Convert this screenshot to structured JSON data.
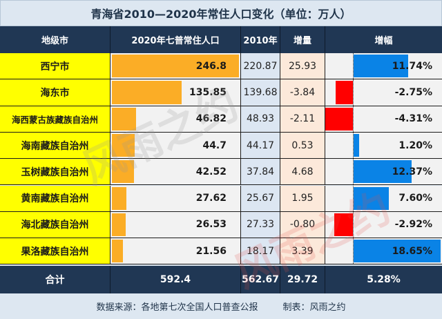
{
  "title": "青海省2010—2020年常住人口变化（单位：万人）",
  "header": {
    "city": "地级市",
    "pop2020": "2020年七普常住人口",
    "pop2010": "2010年",
    "increase": "增量",
    "growth": "增幅"
  },
  "rows": [
    {
      "city": "西宁市",
      "pop2020": "246.8",
      "pop2010": "220.87",
      "increase": "25.93",
      "growth": "11.74%"
    },
    {
      "city": "海东市",
      "pop2020": "135.85",
      "pop2010": "139.68",
      "increase": "-3.84",
      "growth": "-2.75%"
    },
    {
      "city": "海西蒙古族藏族自治州",
      "pop2020": "46.82",
      "pop2010": "48.93",
      "increase": "-2.11",
      "growth": "-4.31%"
    },
    {
      "city": "海南藏族自治州",
      "pop2020": "44.7",
      "pop2010": "44.17",
      "increase": "0.53",
      "growth": "1.20%"
    },
    {
      "city": "玉树藏族自治州",
      "pop2020": "42.52",
      "pop2010": "37.84",
      "increase": "4.68",
      "growth": "12.37%"
    },
    {
      "city": "黄南藏族自治州",
      "pop2020": "27.62",
      "pop2010": "25.67",
      "increase": "1.95",
      "growth": "7.60%"
    },
    {
      "city": "海北藏族自治州",
      "pop2020": "26.53",
      "pop2010": "27.33",
      "increase": "-0.80",
      "growth": "-2.92%"
    },
    {
      "city": "果洛藏族自治州",
      "pop2020": "21.56",
      "pop2010": "18.17",
      "increase": "3.39",
      "growth": "18.65%"
    }
  ],
  "total": {
    "label": "合计",
    "pop2020": "592.4",
    "pop2010": "562.67",
    "increase": "29.72",
    "growth": "5.28%"
  },
  "footer": {
    "source": "数据来源：各地第七次全国人口普查公报",
    "author": "制表：风雨之约"
  },
  "watermark": "风雨之约",
  "colors": {
    "header_bg": "#203754",
    "city_bg": "#ffff00",
    "bar2020": "#fbad26",
    "bar_pos": "#0a83e6",
    "bar_neg": "#ff0000",
    "p10_bg": "#dce6f2",
    "inc_bg": "#fce9da"
  },
  "chart_data": {
    "type": "table",
    "title": "青海省2010—2020年常住人口变化（单位：万人）",
    "columns": [
      "地级市",
      "2020年七普常住人口",
      "2010年",
      "增量",
      "增幅"
    ],
    "categories": [
      "西宁市",
      "海东市",
      "海西蒙古族藏族自治州",
      "海南藏族自治州",
      "玉树藏族自治州",
      "黄南藏族自治州",
      "海北藏族自治州",
      "果洛藏族自治州"
    ],
    "series": [
      {
        "name": "2020年七普常住人口",
        "values": [
          246.8,
          135.85,
          46.82,
          44.7,
          42.52,
          27.62,
          26.53,
          21.56
        ]
      },
      {
        "name": "2010年",
        "values": [
          220.87,
          139.68,
          48.93,
          44.17,
          37.84,
          25.67,
          27.33,
          18.17
        ]
      },
      {
        "name": "增量",
        "values": [
          25.93,
          -3.84,
          -2.11,
          0.53,
          4.68,
          1.95,
          -0.8,
          3.39
        ]
      },
      {
        "name": "增幅(%)",
        "values": [
          11.74,
          -2.75,
          -4.31,
          1.2,
          12.37,
          7.6,
          -2.92,
          18.65
        ]
      }
    ],
    "totals": {
      "2020": 592.4,
      "2010": 562.67,
      "增量": 29.72,
      "增幅(%)": 5.28
    }
  }
}
